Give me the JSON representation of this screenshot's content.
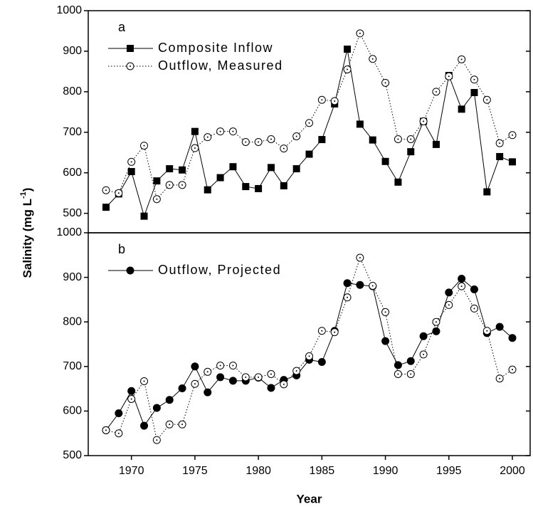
{
  "chart_data": [
    {
      "type": "line",
      "label": "a",
      "x": [
        1968,
        1969,
        1970,
        1971,
        1972,
        1973,
        1974,
        1975,
        1976,
        1977,
        1978,
        1979,
        1980,
        1981,
        1982,
        1983,
        1984,
        1985,
        1986,
        1987,
        1988,
        1989,
        1990,
        1991,
        1992,
        1993,
        1994,
        1995,
        1996,
        1997,
        1998,
        1999,
        2000
      ],
      "xlim": [
        1966.6,
        2001.4
      ],
      "ylim": [
        452,
        1000
      ],
      "yticks": [
        500,
        600,
        700,
        800,
        900,
        1000
      ],
      "ylabel": {
        "text": "Salinity (mg L",
        "sup": "-1",
        "close": ")"
      },
      "series": [
        {
          "name": "Composite Inflow",
          "color": "#000000",
          "marker": "square",
          "line_style": "solid",
          "values": [
            515,
            548,
            603,
            493,
            580,
            610,
            607,
            702,
            558,
            588,
            615,
            566,
            561,
            613,
            568,
            610,
            646,
            682,
            770,
            905,
            720,
            681,
            628,
            577,
            652,
            727,
            670,
            840,
            757,
            798,
            553,
            640,
            627
          ]
        },
        {
          "name": "Outflow, Measured",
          "color": "#000000",
          "marker": "open-circle",
          "line_style": "dotted",
          "values": [
            557,
            550,
            627,
            667,
            535,
            570,
            570,
            661,
            688,
            702,
            702,
            676,
            676,
            683,
            660,
            690,
            723,
            780,
            777,
            855,
            944,
            881,
            822,
            683,
            683,
            727,
            800,
            838,
            880,
            830,
            780,
            673,
            693
          ]
        }
      ]
    },
    {
      "type": "line",
      "label": "b",
      "xlabel": "Year",
      "x": [
        1968,
        1969,
        1970,
        1971,
        1972,
        1973,
        1974,
        1975,
        1976,
        1977,
        1978,
        1979,
        1980,
        1981,
        1982,
        1983,
        1984,
        1985,
        1986,
        1987,
        1988,
        1989,
        1990,
        1991,
        1992,
        1993,
        1994,
        1995,
        1996,
        1997,
        1998,
        1999,
        2000
      ],
      "xlim": [
        1966.6,
        2001.4
      ],
      "xticks": [
        1970,
        1975,
        1980,
        1985,
        1990,
        1995,
        2000
      ],
      "ylim": [
        500,
        1000
      ],
      "yticks": [
        500,
        600,
        700,
        800,
        900,
        1000
      ],
      "series": [
        {
          "name": "Outflow, Projected",
          "color": "#000000",
          "marker": "circle",
          "line_style": "solid",
          "values": [
            557,
            595,
            645,
            567,
            607,
            625,
            651,
            700,
            642,
            676,
            668,
            668,
            675,
            652,
            670,
            680,
            715,
            710,
            780,
            887,
            883,
            880,
            757,
            703,
            712,
            768,
            779,
            866,
            897,
            873,
            775,
            789,
            764
          ]
        },
        {
          "color": "#000000",
          "marker": "open-circle",
          "line_style": "dotted",
          "values": [
            557,
            550,
            627,
            667,
            535,
            570,
            570,
            661,
            688,
            702,
            702,
            676,
            676,
            683,
            660,
            690,
            723,
            780,
            777,
            855,
            944,
            881,
            822,
            683,
            683,
            727,
            800,
            838,
            880,
            830,
            780,
            673,
            693
          ]
        }
      ]
    }
  ]
}
